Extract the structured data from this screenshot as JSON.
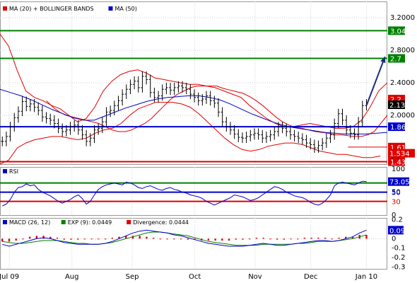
{
  "colors": {
    "price_bar": "#000000",
    "ma20_bollinger": "#e00000",
    "ma50": "#0000cc",
    "green_level": "#008000",
    "blue_level": "#0000cc",
    "red_level": "#e00000",
    "rsi_line": "#0000cc",
    "macd_line": "#0000cc",
    "exp_line": "#008000",
    "divergence": "#e00000",
    "arrow": "#1a2a80",
    "grid": "#cfcfcf",
    "label_text_on_dark": "#ffffff"
  },
  "chart_data": [
    {
      "type": "line",
      "panel": "price",
      "legend": [
        {
          "name": "MA (20) + BOLLINGER BANDS",
          "color_key": "ma20_bollinger"
        },
        {
          "name": "MA (50)",
          "color_key": "ma50"
        }
      ],
      "y_ticks": [
        "3.2000",
        "2.8000",
        "2.4000",
        "2.0000"
      ],
      "y_tick_values": [
        3.2,
        2.8,
        2.4,
        2.0
      ],
      "ylim": [
        1.4,
        3.4
      ],
      "x_labels": [
        "Jul 09",
        "Aug",
        "Sep",
        "Oct",
        "Nov",
        "Dec",
        "Jan 10"
      ],
      "x_label_positions": [
        4,
        31,
        57,
        84,
        110,
        134,
        158
      ],
      "x_range": [
        0,
        167
      ],
      "levels": [
        {
          "value": 3.04,
          "label": "3.04",
          "color_key": "green_level",
          "style": "line"
        },
        {
          "value": 2.7,
          "label": "2.7",
          "color_key": "green_level",
          "style": "line"
        },
        {
          "value": 1.86,
          "label": "1.86",
          "color_key": "blue_level",
          "style": "line"
        },
        {
          "value": 1.43,
          "label": "1.43",
          "color_key": "red_level",
          "style": "line"
        },
        {
          "value": 1.61,
          "label": "1.61",
          "color_key": "red_level",
          "style": "gap"
        }
      ],
      "price_markers": [
        {
          "value": 2.2,
          "label": "2.2",
          "style": "red_box"
        },
        {
          "value": 2.13,
          "label": "2.13",
          "style": "black_box"
        },
        {
          "value": 1.534,
          "label": "1.534",
          "style": "red_box_partial"
        }
      ],
      "gap_label": "gap",
      "forecast_arrow": {
        "from": [
          158,
          2.12
        ],
        "to": [
          166,
          2.72
        ]
      },
      "series": [
        {
          "key": "price",
          "values": [
            1.68,
            1.74,
            1.86,
            1.97,
            2.05,
            2.17,
            2.11,
            2.14,
            2.1,
            2.06,
            1.98,
            1.96,
            1.94,
            1.9,
            1.84,
            1.8,
            1.82,
            1.86,
            1.88,
            1.82,
            1.76,
            1.68,
            1.72,
            1.82,
            1.84,
            1.92,
            2.04,
            2.06,
            2.12,
            2.18,
            2.26,
            2.32,
            2.38,
            2.42,
            2.34,
            2.48,
            2.44,
            2.28,
            2.22,
            2.24,
            2.32,
            2.34,
            2.31,
            2.34,
            2.36,
            2.34,
            2.32,
            2.26,
            2.22,
            2.18,
            2.2,
            2.24,
            2.18,
            2.15,
            2.04,
            1.92,
            1.86,
            1.82,
            1.77,
            1.73,
            1.72,
            1.74,
            1.76,
            1.78,
            1.76,
            1.72,
            1.74,
            1.76,
            1.8,
            1.86,
            1.84,
            1.8,
            1.76,
            1.74,
            1.72,
            1.7,
            1.66,
            1.64,
            1.6,
            1.63,
            1.66,
            1.72,
            1.76,
            1.9,
            2.02,
            1.94,
            1.82,
            1.78,
            1.76,
            1.92,
            2.12,
            2.14
          ]
        },
        {
          "key": "ma20",
          "name": "MA (20)",
          "values": [
            2.18,
            2.1,
            2.04,
            2.0,
            1.98,
            1.96,
            1.94,
            1.92,
            1.9,
            1.86,
            1.82,
            1.8,
            1.8,
            1.82,
            1.86,
            1.9,
            1.96,
            2.04,
            2.12,
            2.2,
            2.26,
            2.3,
            2.34,
            2.36,
            2.36,
            2.36,
            2.36,
            2.33,
            2.31,
            2.29,
            2.27,
            2.23,
            2.18,
            2.12,
            2.05,
            1.98,
            1.92,
            1.88,
            1.85,
            1.84,
            1.82,
            1.8,
            1.79,
            1.78,
            1.76,
            1.76,
            1.75,
            1.74,
            1.74,
            1.76,
            1.8,
            1.9,
            2.0
          ]
        },
        {
          "key": "ma50",
          "name": "MA (50)",
          "values": [
            2.32,
            2.28,
            2.24,
            2.19,
            2.13,
            2.07,
            2.02,
            1.97,
            1.94,
            1.94,
            1.99,
            2.04,
            2.09,
            2.13,
            2.17,
            2.2,
            2.22,
            2.23,
            2.24,
            2.24,
            2.22,
            2.19,
            2.14,
            2.08,
            2.02,
            1.97,
            1.92,
            1.88,
            1.85,
            1.83,
            1.81,
            1.79,
            1.78,
            1.77,
            1.77,
            1.77,
            1.78,
            1.79
          ]
        },
        {
          "key": "bb_upper",
          "name": "Bollinger Upper",
          "values": [
            3.0,
            2.85,
            2.55,
            2.3,
            2.22,
            2.18,
            2.12,
            2.08,
            2.0,
            1.92,
            1.96,
            2.1,
            2.3,
            2.42,
            2.5,
            2.54,
            2.56,
            2.52,
            2.46,
            2.44,
            2.42,
            2.4,
            2.38,
            2.38,
            2.36,
            2.34,
            2.3,
            2.26,
            2.22,
            2.12,
            2.04,
            1.96,
            1.9,
            1.86,
            1.86,
            1.88,
            1.9,
            1.88,
            1.86,
            1.84,
            1.84,
            1.86,
            1.94,
            2.1,
            2.3,
            2.4
          ]
        },
        {
          "key": "bb_lower",
          "name": "Bollinger Lower",
          "values": [
            1.4,
            1.45,
            1.6,
            1.66,
            1.7,
            1.72,
            1.74,
            1.74,
            1.72,
            1.7,
            1.72,
            1.78,
            1.82,
            1.84,
            1.9,
            2.0,
            2.08,
            2.12,
            2.16,
            2.16,
            2.16,
            2.14,
            2.1,
            2.02,
            1.92,
            1.82,
            1.72,
            1.64,
            1.58,
            1.56,
            1.58,
            1.62,
            1.64,
            1.66,
            1.66,
            1.64,
            1.6,
            1.56,
            1.54,
            1.52,
            1.52,
            1.5,
            1.48,
            1.48,
            1.5
          ]
        }
      ]
    },
    {
      "type": "line",
      "panel": "rsi",
      "legend": [
        {
          "name": "RSI",
          "color_key": "rsi_line"
        }
      ],
      "y_ticks": [
        "100",
        "50",
        "0"
      ],
      "y_tick_values": [
        100,
        50,
        0
      ],
      "ylim": [
        0,
        105
      ],
      "levels": [
        {
          "value": 70,
          "color_key": "green_level",
          "label": ""
        },
        {
          "value": 50,
          "color_key": "blue_level",
          "label": "50"
        },
        {
          "value": 30,
          "color_key": "red_level",
          "label": "30"
        }
      ],
      "last_value": 73.05,
      "last_label": "73.05",
      "series": [
        {
          "key": "rsi",
          "values": [
            20,
            24,
            34,
            50,
            60,
            62,
            68,
            64,
            66,
            56,
            50,
            46,
            42,
            36,
            30,
            26,
            30,
            34,
            40,
            44,
            36,
            24,
            30,
            44,
            56,
            62,
            66,
            68,
            70,
            68,
            66,
            72,
            70,
            66,
            60,
            58,
            62,
            64,
            60,
            56,
            54,
            58,
            60,
            56,
            54,
            50,
            48,
            44,
            42,
            40,
            36,
            30,
            26,
            22,
            26,
            30,
            34,
            38,
            44,
            42,
            40,
            36,
            32,
            34,
            38,
            44,
            50,
            56,
            62,
            60,
            56,
            50,
            46,
            42,
            40,
            38,
            34,
            28,
            24,
            22,
            26,
            34,
            44,
            64,
            70,
            72,
            70,
            68,
            66,
            70,
            74,
            73
          ]
        }
      ]
    },
    {
      "type": "bar",
      "panel": "macd",
      "legend": [
        {
          "name": "MACD (26, 12)",
          "color_key": "macd_line"
        },
        {
          "name": "EXP (9): 0.0449",
          "color_key": "exp_line"
        },
        {
          "name": "Divergence: 0.0444",
          "color_key": "divergence"
        }
      ],
      "y_ticks": [
        "0.2",
        "0.1",
        "0",
        "-0.1",
        "-0.2",
        "-0.3"
      ],
      "y_tick_values": [
        0.2,
        0.1,
        0,
        -0.1,
        -0.2,
        -0.3
      ],
      "ylim": [
        -0.32,
        0.22
      ],
      "last_label": "0.09",
      "series": [
        {
          "key": "macd",
          "name": "MACD (26, 12)",
          "values": [
            -0.06,
            -0.08,
            -0.06,
            -0.04,
            -0.02,
            0.0,
            0.01,
            0.0,
            -0.02,
            -0.04,
            -0.05,
            -0.06,
            -0.06,
            -0.06,
            -0.06,
            -0.05,
            -0.03,
            0.0,
            0.03,
            0.06,
            0.08,
            0.09,
            0.08,
            0.07,
            0.06,
            0.04,
            0.03,
            0.01,
            -0.01,
            -0.03,
            -0.05,
            -0.06,
            -0.07,
            -0.08,
            -0.08,
            -0.08,
            -0.07,
            -0.06,
            -0.05,
            -0.06,
            -0.07,
            -0.07,
            -0.06,
            -0.05,
            -0.04,
            -0.03,
            -0.02,
            -0.02,
            -0.03,
            -0.02,
            0.0,
            0.02,
            0.06,
            0.09
          ]
        },
        {
          "key": "exp",
          "name": "EXP (9)",
          "values": [
            -0.03,
            -0.04,
            -0.05,
            -0.05,
            -0.04,
            -0.03,
            -0.02,
            -0.02,
            -0.02,
            -0.03,
            -0.04,
            -0.05,
            -0.05,
            -0.06,
            -0.06,
            -0.05,
            -0.04,
            -0.02,
            0.0,
            0.02,
            0.04,
            0.06,
            0.07,
            0.07,
            0.06,
            0.05,
            0.04,
            0.03,
            0.01,
            -0.01,
            -0.03,
            -0.04,
            -0.05,
            -0.06,
            -0.07,
            -0.07,
            -0.07,
            -0.07,
            -0.06,
            -0.06,
            -0.06,
            -0.06,
            -0.06,
            -0.05,
            -0.05,
            -0.04,
            -0.03,
            -0.03,
            -0.03,
            -0.02,
            -0.01,
            0.0,
            0.02,
            0.04
          ]
        },
        {
          "key": "divergence",
          "name": "Divergence",
          "values": [
            -0.03,
            -0.03,
            -0.02,
            0.0,
            0.02,
            0.03,
            0.03,
            0.02,
            0.01,
            -0.01,
            -0.01,
            -0.01,
            0.0,
            0.0,
            0.0,
            0.0,
            0.01,
            0.02,
            0.03,
            0.03,
            0.03,
            0.02,
            0.01,
            0.0,
            0.0,
            0.0,
            0.0,
            -0.01,
            -0.01,
            -0.02,
            -0.02,
            -0.02,
            -0.02,
            -0.02,
            -0.01,
            -0.01,
            0.0,
            0.01,
            0.01,
            0.0,
            -0.01,
            -0.01,
            0.0,
            0.0,
            0.01,
            0.01,
            0.01,
            0.01,
            0.0,
            0.01,
            0.02,
            0.02,
            0.04,
            0.04
          ]
        }
      ]
    }
  ]
}
